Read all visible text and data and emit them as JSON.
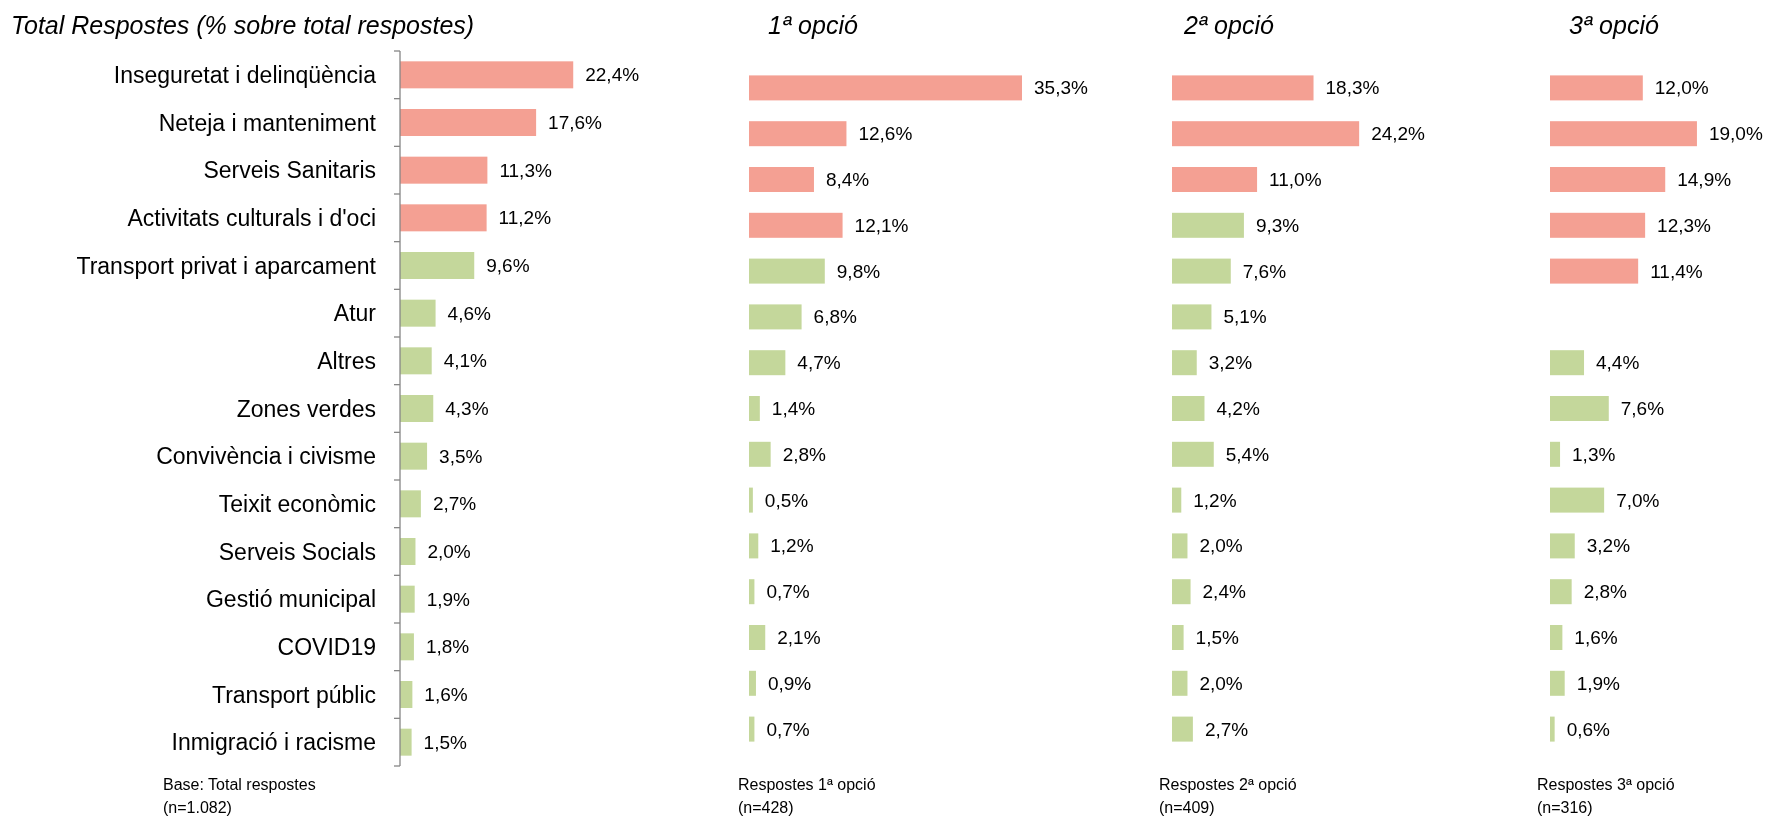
{
  "chart_data": [
    {
      "type": "bar",
      "orientation": "horizontal",
      "title": "Total Respostes (% sobre total respostes)",
      "categories": [
        "Inseguretat i delinqüència",
        "Neteja i manteniment",
        "Serveis Sanitaris",
        "Activitats culturals i d'oci",
        "Transport privat i aparcament",
        "Atur",
        "Altres",
        "Zones verdes",
        "Convivència i civisme",
        "Teixit econòmic",
        "Serveis Socials",
        "Gestió municipal",
        "COVID19",
        "Transport públic",
        "Inmigració i racisme"
      ],
      "values": [
        22.4,
        17.6,
        11.3,
        11.2,
        9.6,
        4.6,
        4.1,
        4.3,
        3.5,
        2.7,
        2.0,
        1.9,
        1.8,
        1.6,
        1.5
      ],
      "value_labels": [
        "22,4%",
        "17,6%",
        "11,3%",
        "11,2%",
        "9,6%",
        "4,6%",
        "4,1%",
        "4,3%",
        "3,5%",
        "2,7%",
        "2,0%",
        "1,9%",
        "1,8%",
        "1,6%",
        "1,5%"
      ],
      "colors": [
        "#f4a093",
        "#f4a093",
        "#f4a093",
        "#f4a093",
        "#c4d79b",
        "#c4d79b",
        "#c4d79b",
        "#c4d79b",
        "#c4d79b",
        "#c4d79b",
        "#c4d79b",
        "#c4d79b",
        "#c4d79b",
        "#c4d79b",
        "#c4d79b"
      ],
      "annotations": [
        "Base: Total respostes\n(n=1.082)"
      ]
    },
    {
      "type": "bar",
      "orientation": "horizontal",
      "title": "1ª opció",
      "tick_labels": false,
      "categories": [
        null,
        null,
        null,
        null,
        null,
        null,
        null,
        null,
        null,
        null,
        null,
        null,
        null,
        null,
        null
      ],
      "values": [
        35.3,
        12.6,
        8.4,
        12.1,
        9.8,
        6.8,
        4.7,
        1.4,
        2.8,
        0.5,
        1.2,
        0.7,
        2.1,
        0.9,
        0.7
      ],
      "value_labels": [
        "35,3%",
        "12,6%",
        "8,4%",
        "12,1%",
        "9,8%",
        "6,8%",
        "4,7%",
        "1,4%",
        "2,8%",
        "0,5%",
        "1,2%",
        "0,7%",
        "2,1%",
        "0,9%",
        "0,7%"
      ],
      "colors": [
        "#f4a093",
        "#f4a093",
        "#f4a093",
        "#f4a093",
        "#c4d79b",
        "#c4d79b",
        "#c4d79b",
        "#c4d79b",
        "#c4d79b",
        "#c4d79b",
        "#c4d79b",
        "#c4d79b",
        "#c4d79b",
        "#c4d79b",
        "#c4d79b"
      ],
      "annotations": [
        "Respostes 1ª opció\n(n=428)"
      ]
    },
    {
      "type": "bar",
      "orientation": "horizontal",
      "title": "2ª opció",
      "tick_labels": false,
      "categories": [
        null,
        null,
        null,
        null,
        null,
        null,
        null,
        null,
        null,
        null,
        null,
        null,
        null,
        null,
        null
      ],
      "values": [
        18.3,
        24.2,
        11.0,
        9.3,
        7.6,
        5.1,
        3.2,
        4.2,
        5.4,
        1.2,
        2.0,
        2.4,
        1.5,
        2.0,
        2.7
      ],
      "value_labels": [
        "18,3%",
        "24,2%",
        "11,0%",
        "9,3%",
        "7,6%",
        "5,1%",
        "3,2%",
        "4,2%",
        "5,4%",
        "1,2%",
        "2,0%",
        "2,4%",
        "1,5%",
        "2,0%",
        "2,7%"
      ],
      "colors": [
        "#f4a093",
        "#f4a093",
        "#f4a093",
        "#c4d79b",
        "#c4d79b",
        "#c4d79b",
        "#c4d79b",
        "#c4d79b",
        "#c4d79b",
        "#c4d79b",
        "#c4d79b",
        "#c4d79b",
        "#c4d79b",
        "#c4d79b",
        "#c4d79b"
      ],
      "annotations": [
        "Respostes 2ª opció\n(n=409)"
      ]
    },
    {
      "type": "bar",
      "orientation": "horizontal",
      "title": "3ª opció",
      "tick_labels": false,
      "categories": [
        null,
        null,
        null,
        null,
        null,
        null,
        null,
        null,
        null,
        null,
        null,
        null,
        null,
        null,
        null
      ],
      "values": [
        12.0,
        19.0,
        14.9,
        12.3,
        11.4,
        null,
        4.4,
        7.6,
        1.3,
        7.0,
        3.2,
        2.8,
        1.6,
        1.9,
        0.6
      ],
      "value_labels": [
        "12,0%",
        "19,0%",
        "14,9%",
        "12,3%",
        "11,4%",
        null,
        "4,4%",
        "7,6%",
        "1,3%",
        "7,0%",
        "3,2%",
        "2,8%",
        "1,6%",
        "1,9%",
        "0,6%"
      ],
      "colors": [
        "#f4a093",
        "#f4a093",
        "#f4a093",
        "#f4a093",
        "#f4a093",
        null,
        "#c4d79b",
        "#c4d79b",
        "#c4d79b",
        "#c4d79b",
        "#c4d79b",
        "#c4d79b",
        "#c4d79b",
        "#c4d79b",
        "#c4d79b"
      ],
      "annotations": [
        "Respostes 3ª opció\n(n=316)"
      ]
    }
  ]
}
